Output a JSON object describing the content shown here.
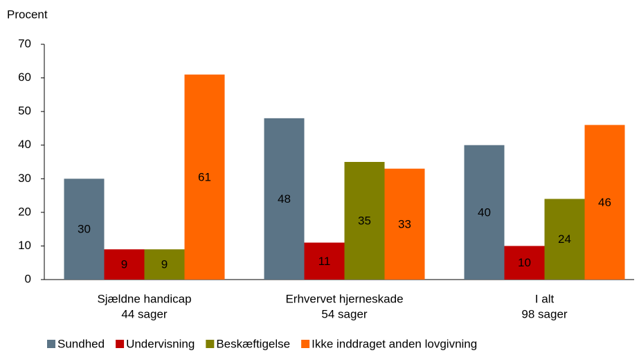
{
  "chart_data": {
    "type": "bar",
    "y_axis_label": "Procent",
    "categories": [
      [
        "Sjældne handicap",
        "44 sager"
      ],
      [
        "Erhvervet hjerneskade",
        "54 sager"
      ],
      [
        "I alt",
        "98 sager"
      ]
    ],
    "series": [
      {
        "name": "Sundhed",
        "color": "#5b7486",
        "values": [
          30,
          48,
          40
        ]
      },
      {
        "name": "Undervisning",
        "color": "#c00000",
        "values": [
          9,
          11,
          10
        ]
      },
      {
        "name": "Beskæftigelse",
        "color": "#7f7f00",
        "values": [
          9,
          35,
          24
        ]
      },
      {
        "name": "Ikke inddraget anden lovgivning",
        "color": "#ff6600",
        "values": [
          61,
          33,
          46
        ]
      }
    ],
    "ylim": [
      0,
      70
    ],
    "yticks": [
      0,
      10,
      20,
      30,
      40,
      50,
      60,
      70
    ],
    "grid": false,
    "legend": "bottom"
  }
}
